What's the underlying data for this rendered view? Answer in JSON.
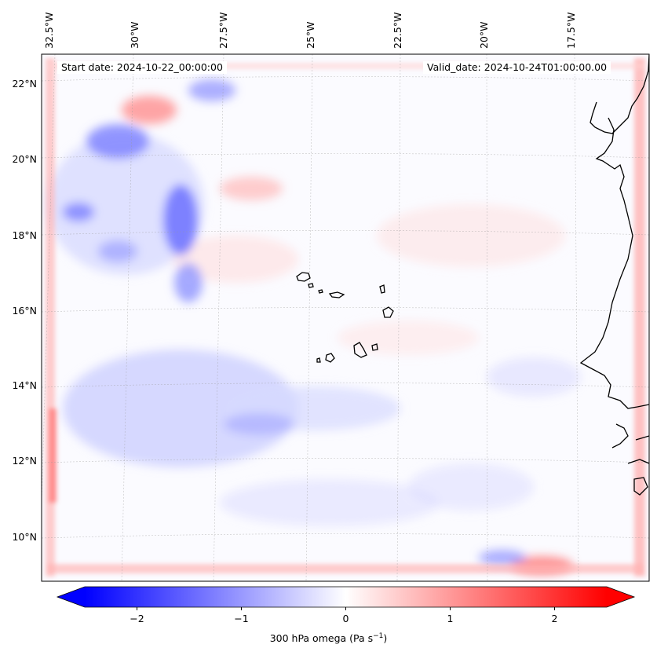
{
  "map": {
    "start_date": "Start date: 2024-10-22_00:00:00",
    "valid_date": "Valid_date: 2024-10-24T01:00:00.00",
    "lon_labels": [
      "32.5°W",
      "30°W",
      "27.5°W",
      "25°W",
      "22.5°W",
      "20°W",
      "17.5°W"
    ],
    "lat_labels": [
      "22°N",
      "20°N",
      "18°N",
      "16°N",
      "14°N",
      "12°N",
      "10°N"
    ],
    "projection": "lambert-conformal",
    "gridlines": true,
    "field": "300 hPa omega",
    "colormap": "bwr"
  },
  "colorbar": {
    "label_main": "300 hPa omega (Pa s",
    "label_exp": "−1",
    "label_close": ")",
    "ticks": [
      "−2",
      "−1",
      "0",
      "1",
      "2"
    ],
    "tick_values": [
      -2,
      -1,
      0,
      1,
      2
    ],
    "range": [
      -2.5,
      2.5
    ],
    "extend": "both",
    "low_color": "#0000ff",
    "mid_color": "#ffffff",
    "high_color": "#ff0000"
  }
}
